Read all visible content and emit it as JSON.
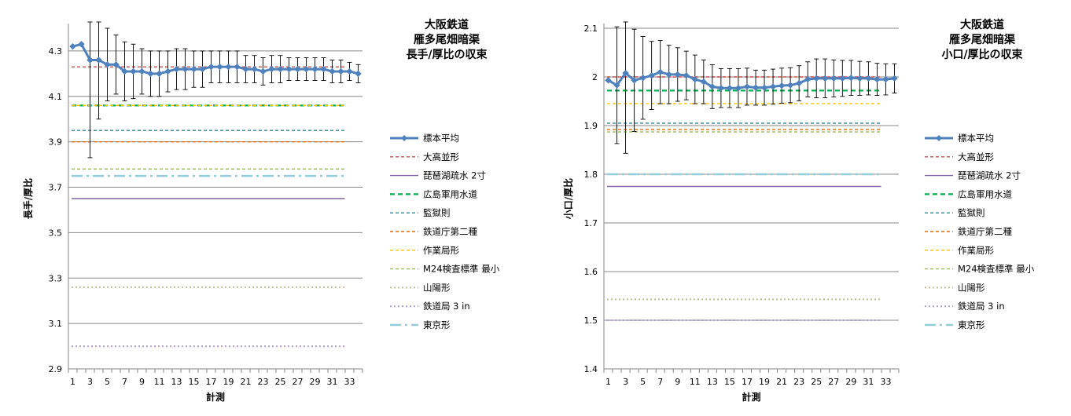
{
  "chart_data": [
    {
      "type": "line",
      "title_lines": [
        "大阪鉄道",
        "雁多尾畑暗渠",
        "長手/厚比の収束"
      ],
      "xlabel": "計測",
      "ylabel": "長手/厚比",
      "ylim": [
        2.9,
        4.4
      ],
      "yticks": [
        "2.9",
        "3.1",
        "3.3",
        "3.5",
        "3.7",
        "3.9",
        "4.1",
        "4.3"
      ],
      "ytick_values": [
        2.9,
        3.1,
        3.3,
        3.5,
        3.7,
        3.9,
        4.1,
        4.3
      ],
      "xticks": [
        "1",
        "3",
        "5",
        "7",
        "9",
        "11",
        "13",
        "15",
        "17",
        "19",
        "21",
        "23",
        "25",
        "27",
        "29",
        "31",
        "33"
      ],
      "xtick_values": [
        1,
        3,
        5,
        7,
        9,
        11,
        13,
        15,
        17,
        19,
        21,
        23,
        25,
        27,
        29,
        31,
        33
      ],
      "grid": true,
      "legend_position": "right",
      "x_count": 34,
      "mean": {
        "name": "標本平均",
        "color": "#4f81bd",
        "x": [
          1,
          2,
          3,
          4,
          5,
          6,
          7,
          8,
          9,
          10,
          11,
          12,
          13,
          14,
          15,
          16,
          17,
          18,
          19,
          20,
          21,
          22,
          23,
          24,
          25,
          26,
          27,
          28,
          29,
          30,
          31,
          32,
          33,
          34
        ],
        "values": [
          4.32,
          4.33,
          4.26,
          4.26,
          4.24,
          4.24,
          4.21,
          4.21,
          4.21,
          4.2,
          4.2,
          4.21,
          4.22,
          4.22,
          4.22,
          4.22,
          4.23,
          4.23,
          4.23,
          4.23,
          4.22,
          4.22,
          4.21,
          4.22,
          4.22,
          4.22,
          4.22,
          4.22,
          4.22,
          4.22,
          4.21,
          4.21,
          4.21,
          4.2
        ],
        "error": [
          0.0,
          0.0,
          0.43,
          0.26,
          0.16,
          0.13,
          0.13,
          0.12,
          0.1,
          0.1,
          0.1,
          0.09,
          0.09,
          0.09,
          0.08,
          0.08,
          0.07,
          0.07,
          0.07,
          0.07,
          0.06,
          0.06,
          0.06,
          0.06,
          0.06,
          0.05,
          0.05,
          0.05,
          0.05,
          0.05,
          0.05,
          0.05,
          0.04,
          0.04
        ]
      },
      "reference_lines": [
        {
          "name": "大高並形",
          "value": 4.23,
          "color": "#c0504d",
          "dash": "4,3",
          "width": 1.4
        },
        {
          "name": "琵琶湖疏水 2寸",
          "value": 3.65,
          "color": "#8064a2",
          "dash": "",
          "width": 1.4
        },
        {
          "name": "広島軍用水道",
          "value": 4.06,
          "color": "#00b050",
          "dash": "6,4",
          "width": 2.2
        },
        {
          "name": "監獄則",
          "value": 3.95,
          "color": "#31859c",
          "dash": "4,3",
          "width": 1.4
        },
        {
          "name": "鉄道庁第二種",
          "value": 3.9,
          "color": "#e46c0a",
          "dash": "4,3",
          "width": 1.4
        },
        {
          "name": "作業局形",
          "value": 4.06,
          "color": "#ffc000",
          "dash": "4,3",
          "width": 1.4
        },
        {
          "name": "M24検査標準 最小",
          "value": 3.78,
          "color": "#9bbb59",
          "dash": "4,3",
          "width": 1.4
        },
        {
          "name": "山陽形",
          "value": 3.26,
          "color": "#c4bd97",
          "dash": "2,3",
          "width": 2
        },
        {
          "name": "鉄道局 3 in",
          "value": 3.0,
          "color": "#b1a0c7",
          "dash": "2,3",
          "width": 2
        },
        {
          "name": "東京形",
          "value": 3.75,
          "color": "#92cddc",
          "dash": "14,5,3,5",
          "width": 2.5
        }
      ]
    },
    {
      "type": "line",
      "title_lines": [
        "大阪鉄道",
        "雁多尾畑暗渠",
        "小口/厚比の収束"
      ],
      "xlabel": "計測",
      "ylabel": "小口/厚比",
      "ylim": [
        1.4,
        2.1
      ],
      "yticks": [
        "1.4",
        "1.5",
        "1.6",
        "1.7",
        "1.8",
        "1.9",
        "2",
        "2.1"
      ],
      "ytick_values": [
        1.4,
        1.5,
        1.6,
        1.7,
        1.8,
        1.9,
        2.0,
        2.1
      ],
      "xticks": [
        "1",
        "3",
        "5",
        "7",
        "9",
        "11",
        "13",
        "15",
        "17",
        "19",
        "21",
        "23",
        "25",
        "27",
        "29",
        "31",
        "33"
      ],
      "xtick_values": [
        1,
        3,
        5,
        7,
        9,
        11,
        13,
        15,
        17,
        19,
        21,
        23,
        25,
        27,
        29,
        31,
        33
      ],
      "grid": true,
      "legend_position": "right",
      "x_count": 34,
      "mean": {
        "name": "標本平均",
        "color": "#4f81bd",
        "x": [
          1,
          2,
          3,
          4,
          5,
          6,
          7,
          8,
          9,
          10,
          11,
          12,
          13,
          14,
          15,
          16,
          17,
          18,
          19,
          20,
          21,
          22,
          23,
          24,
          25,
          26,
          27,
          28,
          29,
          30,
          31,
          32,
          33,
          34
        ],
        "values": [
          1.993,
          1.983,
          2.008,
          1.993,
          1.998,
          2.003,
          2.01,
          2.005,
          2.005,
          2.003,
          1.995,
          1.99,
          1.98,
          1.977,
          1.977,
          1.977,
          1.98,
          1.978,
          1.978,
          1.98,
          1.982,
          1.983,
          1.987,
          1.995,
          1.997,
          1.997,
          1.997,
          1.997,
          1.998,
          1.997,
          1.997,
          1.995,
          1.995,
          1.997
        ],
        "error": [
          0.0,
          0.12,
          0.165,
          0.105,
          0.085,
          0.07,
          0.065,
          0.06,
          0.055,
          0.05,
          0.05,
          0.045,
          0.045,
          0.04,
          0.04,
          0.04,
          0.038,
          0.036,
          0.036,
          0.036,
          0.036,
          0.036,
          0.036,
          0.036,
          0.04,
          0.04,
          0.038,
          0.037,
          0.036,
          0.035,
          0.034,
          0.033,
          0.032,
          0.03
        ]
      },
      "reference_lines": [
        {
          "name": "大高並形",
          "value": 2.0,
          "color": "#c0504d",
          "dash": "4,3",
          "width": 1.4
        },
        {
          "name": "琵琶湖疏水 2寸",
          "value": 1.775,
          "color": "#8064a2",
          "dash": "",
          "width": 1.4
        },
        {
          "name": "広島軍用水道",
          "value": 1.972,
          "color": "#00b050",
          "dash": "6,4",
          "width": 2.2
        },
        {
          "name": "監獄則",
          "value": 1.905,
          "color": "#31859c",
          "dash": "4,3",
          "width": 1.4
        },
        {
          "name": "鉄道庁第二種",
          "value": 1.892,
          "color": "#e46c0a",
          "dash": "4,3",
          "width": 1.4
        },
        {
          "name": "作業局形",
          "value": 1.945,
          "color": "#ffc000",
          "dash": "4,3",
          "width": 1.4
        },
        {
          "name": "M24検査標準 最小",
          "value": 1.887,
          "color": "#9bbb59",
          "dash": "4,3",
          "width": 1.4
        },
        {
          "name": "山陽形",
          "value": 1.543,
          "color": "#c4bd97",
          "dash": "2,3",
          "width": 2
        },
        {
          "name": "鉄道局 3 in",
          "value": 1.5,
          "color": "#b1a0c7",
          "dash": "2,3",
          "width": 2
        },
        {
          "name": "東京形",
          "value": 1.8,
          "color": "#92cddc",
          "dash": "14,5,3,5",
          "width": 2.5
        }
      ]
    }
  ]
}
